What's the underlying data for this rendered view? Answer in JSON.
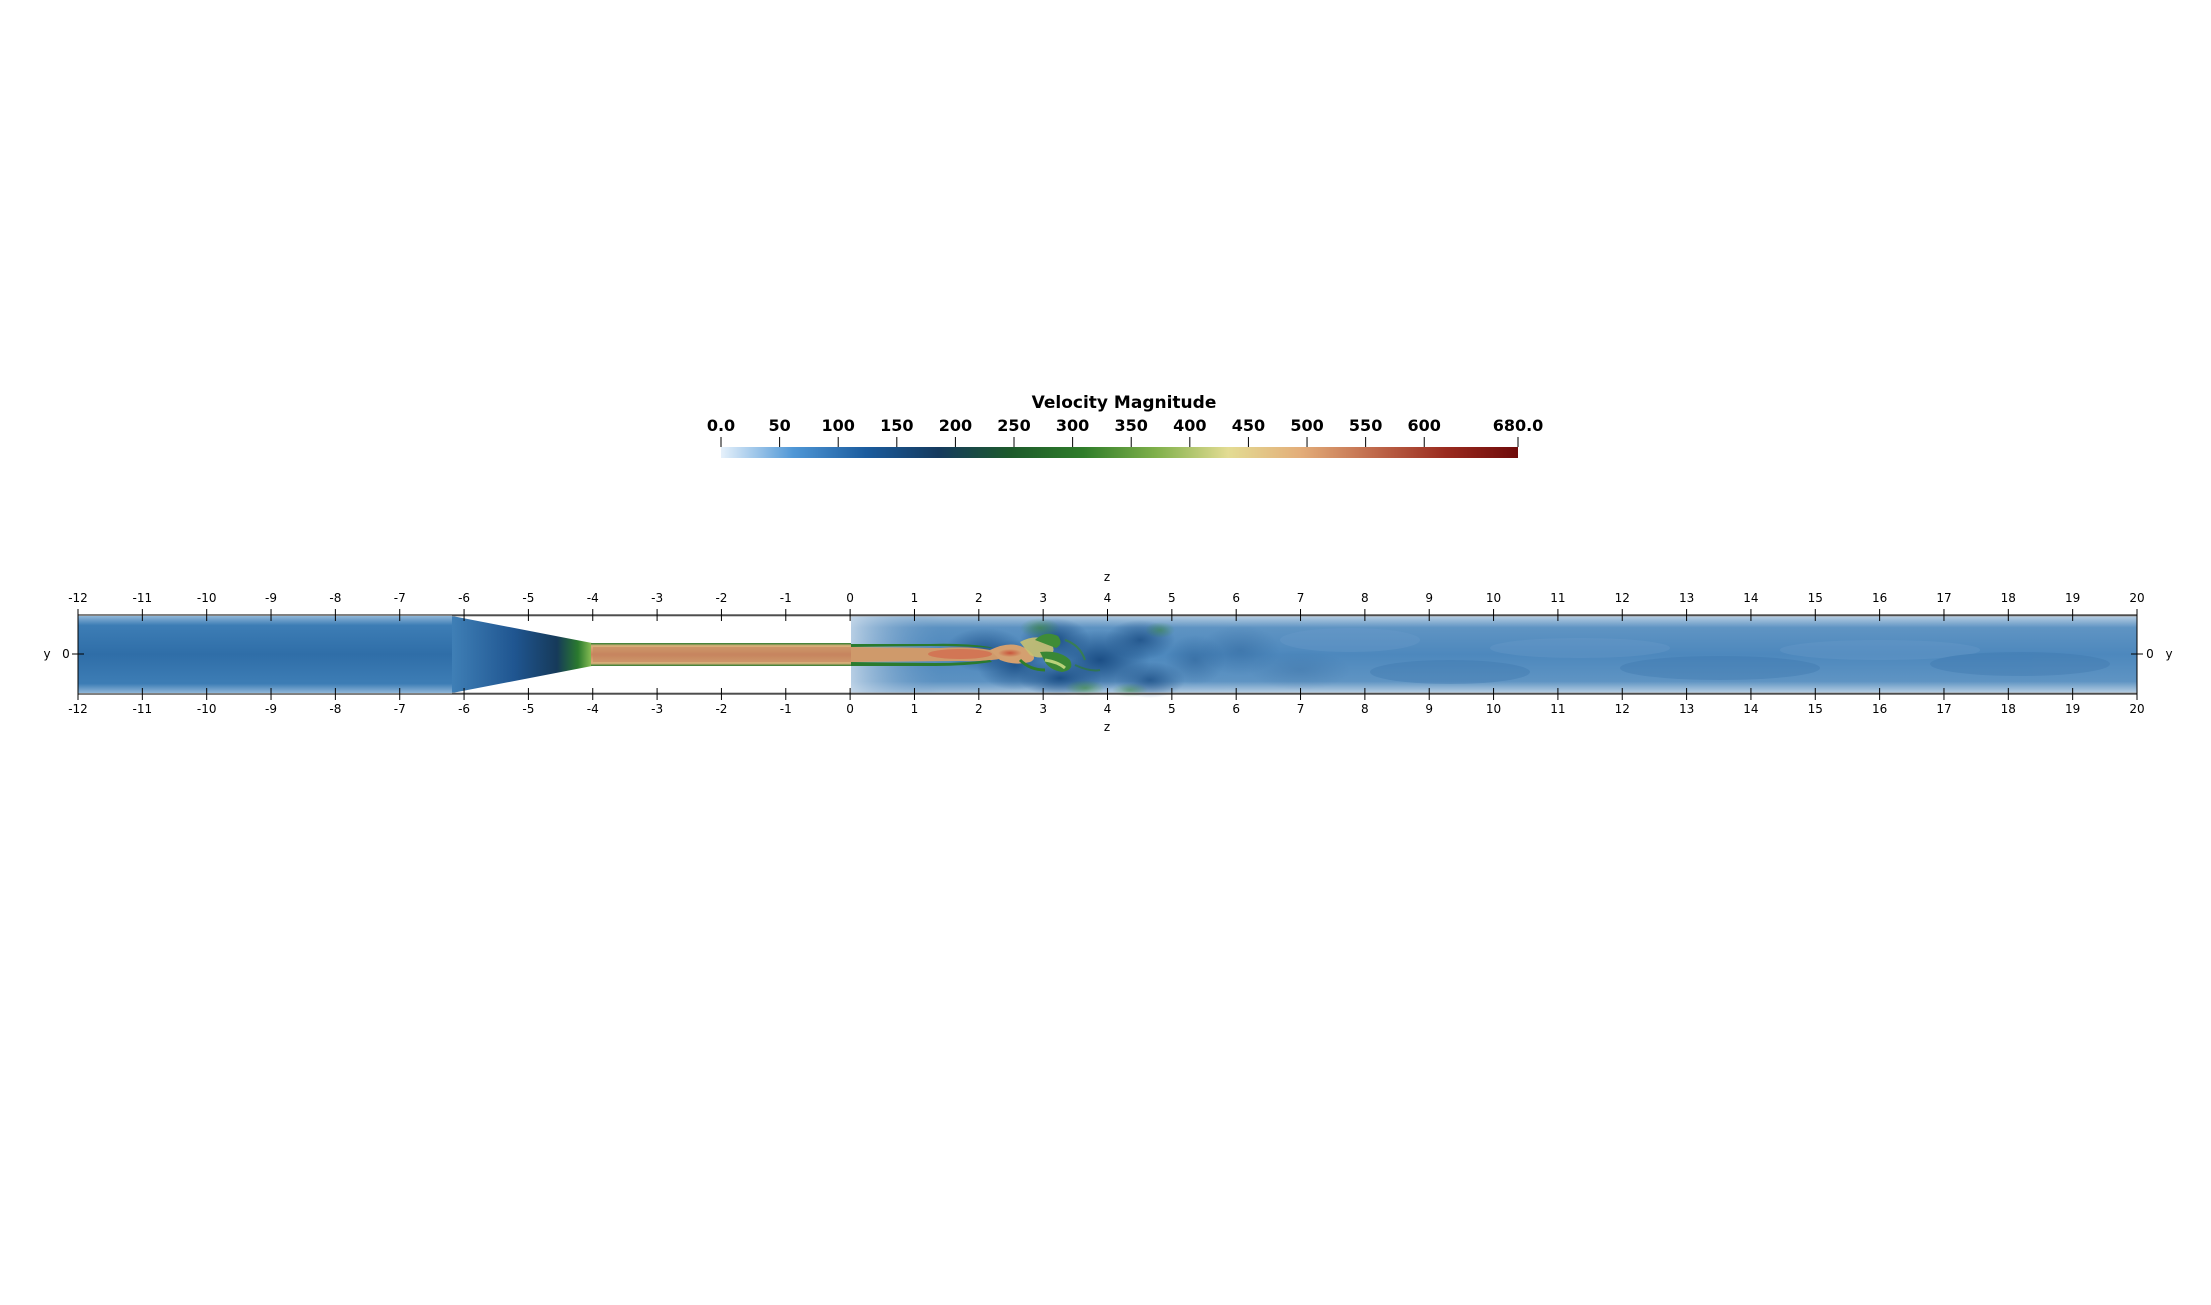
{
  "colorbar": {
    "title": "Velocity Magnitude",
    "min": 0.0,
    "max": 680.0,
    "ticks": [
      {
        "value": 0,
        "label": "0.0"
      },
      {
        "value": 50,
        "label": "50"
      },
      {
        "value": 100,
        "label": "100"
      },
      {
        "value": 150,
        "label": "150"
      },
      {
        "value": 200,
        "label": "200"
      },
      {
        "value": 250,
        "label": "250"
      },
      {
        "value": 300,
        "label": "300"
      },
      {
        "value": 350,
        "label": "350"
      },
      {
        "value": 400,
        "label": "400"
      },
      {
        "value": 450,
        "label": "450"
      },
      {
        "value": 500,
        "label": "500"
      },
      {
        "value": 550,
        "label": "550"
      },
      {
        "value": 600,
        "label": "600"
      },
      {
        "value": 680,
        "label": "680.0"
      }
    ],
    "colormap": [
      "#e6f1fb",
      "#4f97d6",
      "#1b5c9e",
      "#153a5e",
      "#1d5a2b",
      "#2f7d2a",
      "#7fb04a",
      "#e3dc93",
      "#e3ad79",
      "#c06a4c",
      "#9a2b1f",
      "#6e0a0a"
    ]
  },
  "axes": {
    "z_axis_label": "z",
    "y_axis_label": "y",
    "y_zero_label": "0",
    "z_ticks": [
      "-12",
      "-11",
      "-10",
      "-9",
      "-8",
      "-7",
      "-6",
      "-5",
      "-4",
      "-3",
      "-2",
      "-1",
      "0",
      "1",
      "2",
      "3",
      "4",
      "5",
      "6",
      "7",
      "8",
      "9",
      "10",
      "11",
      "12",
      "13",
      "14",
      "15",
      "16",
      "17",
      "18",
      "19",
      "20"
    ],
    "z_range": [
      -12,
      20
    ]
  },
  "field": {
    "variable": "Velocity Magnitude",
    "inlet_velocity": 110,
    "core_velocity": 570,
    "downstream_velocity": 130
  }
}
